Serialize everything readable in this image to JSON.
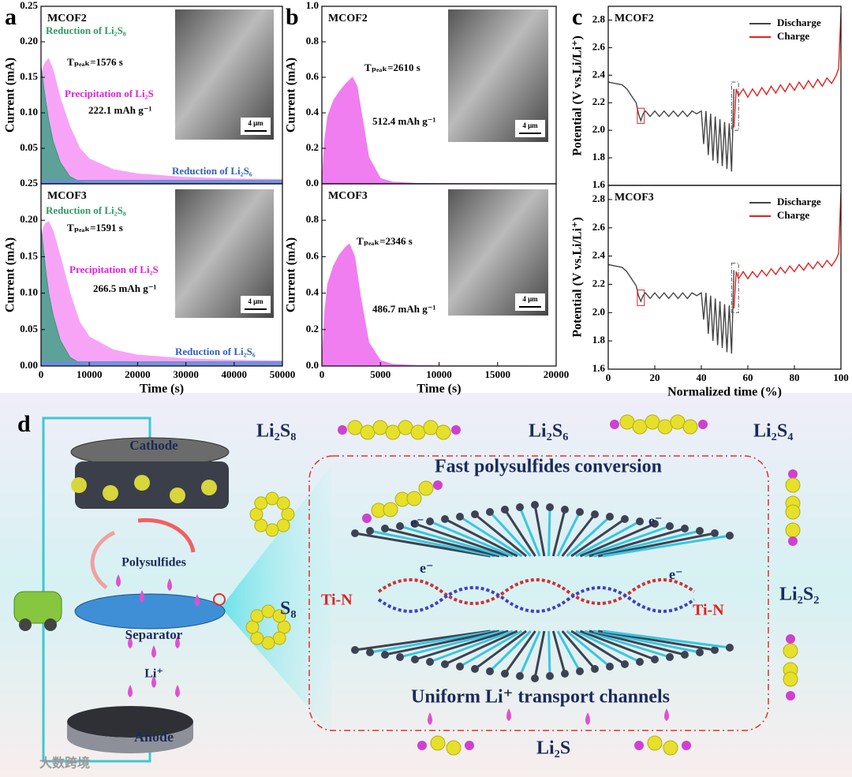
{
  "panel_labels": [
    "a",
    "b",
    "c",
    "d"
  ],
  "chart_data": [
    {
      "type": "area",
      "title": "MCOF2",
      "ylabel": "Current (mA)",
      "scale_bar": "4 μm",
      "x": [
        0,
        500,
        1000,
        1576,
        2500,
        4000,
        6000,
        8000,
        10000,
        15000,
        20000,
        30000,
        40000,
        50000
      ],
      "series": [
        {
          "name": "Reduction of Li₂S₈",
          "color": "#2e9a5e",
          "values": [
            0.165,
            0.14,
            0.115,
            0.09,
            0.06,
            0.03,
            0.01,
            0.003,
            0,
            0,
            0,
            0,
            0,
            0
          ]
        },
        {
          "name": "Precipitation of Li₂S",
          "color": "#e020e0",
          "values": [
            0.15,
            0.165,
            0.172,
            0.176,
            0.16,
            0.12,
            0.08,
            0.05,
            0.035,
            0.02,
            0.014,
            0.009,
            0.007,
            0.006
          ]
        },
        {
          "name": "Reduction of Li₂S₆",
          "color": "#3060c0",
          "values": [
            0.005,
            0.005,
            0.005,
            0.005,
            0.005,
            0.005,
            0.005,
            0.005,
            0.005,
            0.005,
            0.005,
            0.005,
            0.005,
            0.005
          ]
        }
      ],
      "annotations": [
        "Tₚₑₐₖ=1576 s",
        "222.1 mAh g⁻¹"
      ],
      "xlim": [
        0,
        50000
      ],
      "ylim": [
        0,
        0.25
      ],
      "yticks": [
        {
          "value": 0.05,
          "label": "0.05"
        },
        {
          "value": 0.1,
          "label": "0.10"
        },
        {
          "value": 0.15,
          "label": "0.15"
        },
        {
          "value": 0.2,
          "label": "0.20"
        },
        {
          "value": 0.25,
          "label": "0.25"
        }
      ]
    },
    {
      "type": "area",
      "title": "MCOF3",
      "ylabel": "Current (mA)",
      "xlabel": "Time (s)",
      "scale_bar": "4 μm",
      "x": [
        0,
        500,
        1000,
        1591,
        2500,
        4000,
        6000,
        8000,
        10000,
        15000,
        20000,
        30000,
        40000,
        50000
      ],
      "series": [
        {
          "name": "Reduction of Li₂S₈",
          "color": "#2e9a5e",
          "values": [
            0.19,
            0.16,
            0.13,
            0.1,
            0.07,
            0.035,
            0.012,
            0.004,
            0,
            0,
            0,
            0,
            0,
            0
          ]
        },
        {
          "name": "Precipitation of Li₂S",
          "color": "#e020e0",
          "values": [
            0.17,
            0.19,
            0.196,
            0.198,
            0.185,
            0.15,
            0.1,
            0.06,
            0.04,
            0.022,
            0.015,
            0.01,
            0.008,
            0.007
          ]
        },
        {
          "name": "Reduction of Li₂S₆",
          "color": "#3060c0",
          "values": [
            0.006,
            0.006,
            0.006,
            0.006,
            0.006,
            0.006,
            0.006,
            0.006,
            0.006,
            0.006,
            0.006,
            0.006,
            0.006,
            0.006
          ]
        }
      ],
      "annotations": [
        "Tₚₑₐₖ=1591 s",
        "266.5 mAh g⁻¹"
      ],
      "xlim": [
        0,
        50000
      ],
      "ylim": [
        0,
        0.25
      ],
      "xticks": [
        0,
        10000,
        20000,
        30000,
        40000,
        50000
      ],
      "yticks": [
        {
          "value": 0,
          "label": "0.00"
        },
        {
          "value": 0.05,
          "label": "0.05"
        },
        {
          "value": 0.1,
          "label": "0.10"
        },
        {
          "value": 0.15,
          "label": "0.15"
        },
        {
          "value": 0.2,
          "label": "0.20"
        },
        {
          "value": 0.25,
          "label": "0.25"
        }
      ]
    },
    {
      "type": "area",
      "title": "MCOF2",
      "ylabel": "Current (mA)",
      "scale_bar": "4 μm",
      "color": "#f07ef0",
      "x": [
        0,
        250,
        500,
        1000,
        1500,
        2000,
        2610,
        3000,
        3500,
        4000,
        5000,
        6000,
        8000,
        10000,
        20000
      ],
      "values": [
        0,
        0.25,
        0.38,
        0.47,
        0.52,
        0.56,
        0.6,
        0.55,
        0.35,
        0.15,
        0.03,
        0.01,
        0.003,
        0.001,
        0
      ],
      "annotations": [
        "Tₚₑₐₖ=2610 s",
        "512.4 mAh g⁻¹"
      ],
      "xlim": [
        0,
        20000
      ],
      "ylim": [
        0,
        1.0
      ],
      "yticks": [
        {
          "value": 0,
          "label": "0.0"
        },
        {
          "value": 0.2,
          "label": "0.2"
        },
        {
          "value": 0.4,
          "label": "0.4"
        },
        {
          "value": 0.6,
          "label": "0.6"
        },
        {
          "value": 0.8,
          "label": "0.8"
        },
        {
          "value": 1.0,
          "label": "1.0"
        }
      ]
    },
    {
      "type": "area",
      "title": "MCOF3",
      "ylabel": "Current (mA)",
      "xlabel": "Time (s)",
      "scale_bar": "4 μm",
      "color": "#f07ef0",
      "x": [
        0,
        250,
        500,
        1000,
        1500,
        2000,
        2346,
        2800,
        3300,
        4000,
        5000,
        6000,
        8000,
        10000,
        20000
      ],
      "values": [
        0,
        0.3,
        0.45,
        0.55,
        0.61,
        0.65,
        0.67,
        0.6,
        0.38,
        0.13,
        0.03,
        0.01,
        0.003,
        0.001,
        0
      ],
      "annotations": [
        "Tₚₑₐₖ=2346 s",
        "486.7 mAh g⁻¹"
      ],
      "xlim": [
        0,
        20000
      ],
      "ylim": [
        0,
        1.0
      ],
      "xticks": [
        0,
        5000,
        10000,
        15000,
        20000
      ],
      "yticks": [
        {
          "value": 0,
          "label": "0.0"
        },
        {
          "value": 0.2,
          "label": "0.2"
        },
        {
          "value": 0.4,
          "label": "0.4"
        },
        {
          "value": 0.6,
          "label": "0.6"
        },
        {
          "value": 0.8,
          "label": "0.8"
        }
      ]
    },
    {
      "type": "line",
      "title": "MCOF2",
      "ylabel": "Potential (V vs.Li/Li⁺)",
      "series": [
        {
          "name": "Discharge",
          "color": "#444444",
          "x": [
            0,
            3,
            6,
            8,
            10,
            12,
            13,
            14,
            15,
            16,
            18,
            20,
            22,
            24,
            26,
            28,
            30,
            32,
            34,
            36,
            38,
            40,
            41,
            42,
            43,
            44,
            45,
            46,
            47,
            48,
            49,
            50,
            51,
            52,
            53,
            54
          ],
          "values": [
            2.35,
            2.34,
            2.33,
            2.3,
            2.25,
            2.2,
            2.12,
            2.07,
            2.12,
            2.14,
            2.1,
            2.14,
            2.1,
            2.14,
            2.1,
            2.14,
            2.1,
            2.14,
            2.1,
            2.14,
            2.12,
            2.14,
            1.9,
            2.14,
            1.82,
            2.12,
            1.78,
            2.1,
            1.76,
            2.08,
            1.74,
            2.06,
            1.72,
            2.05,
            1.7,
            2.3
          ]
        },
        {
          "name": "Charge",
          "color": "#e02020",
          "x": [
            54,
            55,
            56,
            58,
            60,
            62,
            64,
            66,
            68,
            70,
            72,
            74,
            76,
            78,
            80,
            82,
            84,
            86,
            88,
            90,
            92,
            94,
            96,
            98,
            99,
            100
          ],
          "values": [
            2.02,
            2.3,
            2.25,
            2.3,
            2.24,
            2.3,
            2.25,
            2.31,
            2.26,
            2.32,
            2.27,
            2.33,
            2.28,
            2.34,
            2.29,
            2.35,
            2.3,
            2.36,
            2.31,
            2.37,
            2.32,
            2.38,
            2.34,
            2.4,
            2.45,
            2.85
          ]
        }
      ],
      "legend": "upper right",
      "xlim": [
        0,
        100
      ],
      "ylim": [
        1.6,
        2.9
      ],
      "yticks": [
        {
          "value": 1.6,
          "label": "1.6"
        },
        {
          "value": 1.8,
          "label": "1.8"
        },
        {
          "value": 2.0,
          "label": "2.0"
        },
        {
          "value": 2.2,
          "label": "2.2"
        },
        {
          "value": 2.4,
          "label": "2.4"
        },
        {
          "value": 2.6,
          "label": "2.6"
        },
        {
          "value": 2.8,
          "label": "2.8"
        }
      ]
    },
    {
      "type": "line",
      "title": "MCOF3",
      "ylabel": "Potential (V vs.Li/Li⁺)",
      "xlabel": "Normalized time (%)",
      "series": [
        {
          "name": "Discharge",
          "color": "#444444",
          "x": [
            0,
            3,
            6,
            8,
            10,
            12,
            13,
            14,
            15,
            16,
            18,
            20,
            22,
            24,
            26,
            28,
            30,
            32,
            34,
            36,
            38,
            40,
            41,
            42,
            43,
            44,
            45,
            46,
            47,
            48,
            49,
            50,
            51,
            52,
            53,
            54
          ],
          "values": [
            2.34,
            2.33,
            2.32,
            2.29,
            2.24,
            2.19,
            2.12,
            2.08,
            2.12,
            2.14,
            2.1,
            2.14,
            2.1,
            2.14,
            2.1,
            2.14,
            2.1,
            2.14,
            2.1,
            2.14,
            2.12,
            2.14,
            1.95,
            2.14,
            1.85,
            2.12,
            1.8,
            2.1,
            1.77,
            2.08,
            1.75,
            2.06,
            1.72,
            2.05,
            1.71,
            2.3
          ]
        },
        {
          "name": "Charge",
          "color": "#e02020",
          "x": [
            54,
            55,
            56,
            58,
            60,
            62,
            64,
            66,
            68,
            70,
            72,
            74,
            76,
            78,
            80,
            82,
            84,
            86,
            88,
            90,
            92,
            94,
            96,
            98,
            99,
            100
          ],
          "values": [
            2.03,
            2.29,
            2.24,
            2.29,
            2.24,
            2.29,
            2.25,
            2.3,
            2.26,
            2.31,
            2.27,
            2.32,
            2.28,
            2.33,
            2.29,
            2.34,
            2.3,
            2.35,
            2.31,
            2.36,
            2.32,
            2.37,
            2.33,
            2.38,
            2.42,
            2.85
          ]
        }
      ],
      "legend": "upper right",
      "xlim": [
        0,
        100
      ],
      "ylim": [
        1.6,
        2.9
      ],
      "xticks": [
        0,
        20,
        40,
        60,
        80,
        100
      ],
      "yticks": [
        {
          "value": 1.6,
          "label": "1.6"
        },
        {
          "value": 1.8,
          "label": "1.8"
        },
        {
          "value": 2.0,
          "label": "2.0"
        },
        {
          "value": 2.2,
          "label": "2.2"
        },
        {
          "value": 2.4,
          "label": "2.4"
        },
        {
          "value": 2.6,
          "label": "2.6"
        },
        {
          "value": 2.8,
          "label": "2.8"
        }
      ]
    }
  ],
  "diagram": {
    "cathode": "Cathode",
    "polysulfides": "Polysulfides",
    "separator": "Separator",
    "li_ion": "Li⁺",
    "anode": "Anode",
    "s8": "S₈",
    "species": [
      "Li₂S₈",
      "Li₂S₆",
      "Li₂S₄",
      "Li₂S₂",
      "Li₂S"
    ],
    "top_caption": "Fast polysulfides conversion",
    "bottom_caption": "Uniform Li⁺ transport channels",
    "bonds": [
      "Ti-N",
      "Ti-N"
    ],
    "electrons": [
      "e⁻",
      "e⁻",
      "e⁻",
      "e⁻"
    ],
    "watermark": "大数跨境"
  }
}
